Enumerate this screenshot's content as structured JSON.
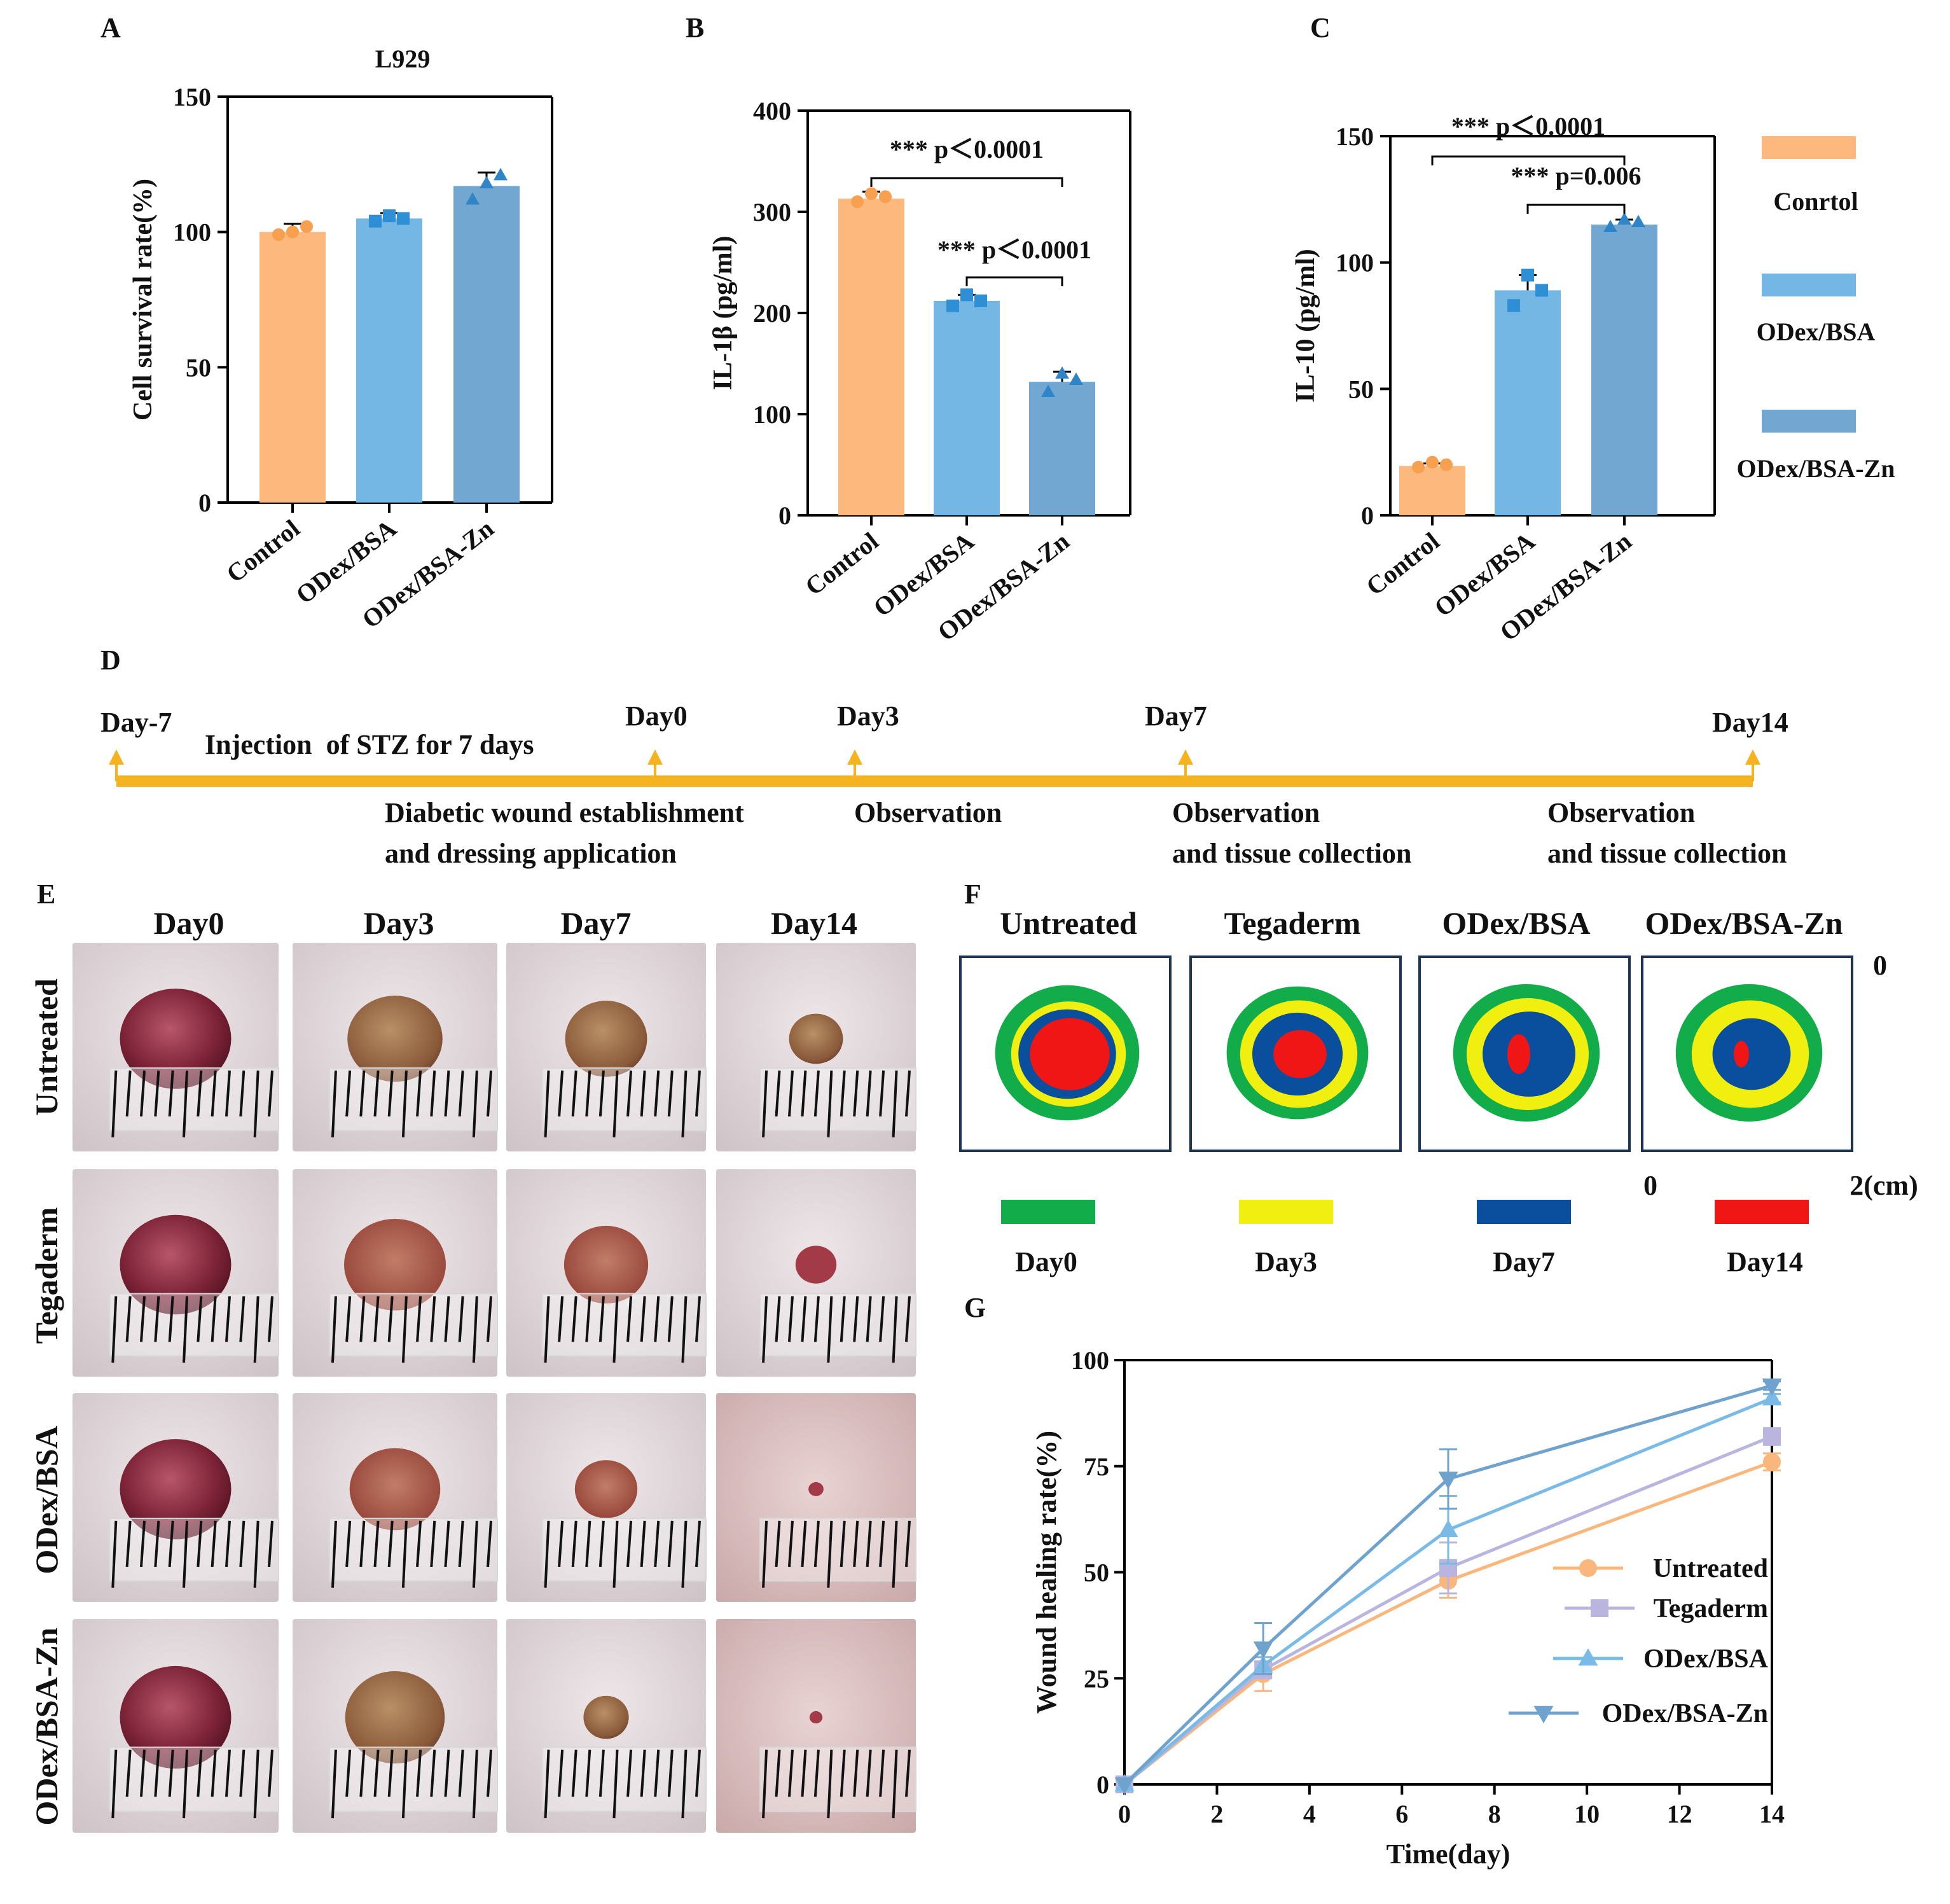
{
  "colors": {
    "control": "#FDB97D",
    "bsa": "#75B7E4",
    "bsazn": "#72A7D1",
    "control_dot": "#F7A04F",
    "bsa_dot": "#2E8FD5",
    "bsazn_dot": "#2F85C8",
    "timeline": "#F5B31F",
    "day0": "#12AD4A",
    "day3": "#F1EF10",
    "day7": "#094F9D",
    "day14": "#F11616",
    "untreated_line": "#F9B67D",
    "tegaderm_line": "#B9B5DF",
    "bsa_line": "#7ABAE6",
    "bsazn_line": "#6FA2CD"
  },
  "panel_letters": {
    "a": "A",
    "b": "B",
    "c": "C",
    "d": "D",
    "e": "E",
    "f": "F",
    "g": "G"
  },
  "chart_data": [
    {
      "id": "A",
      "type": "bar",
      "title": "L929",
      "xlabel": "",
      "ylabel": "Cell survival rate(%)",
      "ylim": [
        0,
        150
      ],
      "yticks": [
        0,
        50,
        100,
        150
      ],
      "categories": [
        "Control",
        "ODex/BSA",
        "ODex/BSA-Zn"
      ],
      "values": [
        100,
        105,
        117
      ],
      "errors": [
        3,
        2,
        5
      ],
      "points": [
        [
          99,
          100,
          102
        ],
        [
          104,
          106,
          105
        ],
        [
          112,
          118,
          121
        ]
      ],
      "annotations": []
    },
    {
      "id": "B",
      "type": "bar",
      "title": "",
      "xlabel": "",
      "ylabel": "IL-1β (pg/ml)",
      "ylim": [
        0,
        400
      ],
      "yticks": [
        0,
        100,
        200,
        300,
        400
      ],
      "categories": [
        "Control",
        "ODex/BSA",
        "ODex/BSA-Zn"
      ],
      "values": [
        313,
        212,
        132
      ],
      "errors": [
        7,
        6,
        10
      ],
      "points": [
        [
          310,
          318,
          315
        ],
        [
          207,
          218,
          212
        ],
        [
          122,
          140,
          134
        ]
      ],
      "annotations": [
        {
          "text": "*** p＜0.0001",
          "from": 0,
          "to": 2
        },
        {
          "text": "*** p＜0.0001",
          "from": 1,
          "to": 2
        }
      ]
    },
    {
      "id": "C",
      "type": "bar",
      "title": "",
      "xlabel": "",
      "ylabel": "IL-10 (pg/ml)",
      "ylim": [
        0,
        150
      ],
      "yticks": [
        0,
        50,
        100,
        150
      ],
      "categories": [
        "Control",
        "ODex/BSA",
        "ODex/BSA-Zn"
      ],
      "values": [
        19.5,
        89,
        115
      ],
      "errors": [
        1,
        6,
        2
      ],
      "points": [
        [
          19,
          21,
          20
        ],
        [
          83,
          95,
          89
        ],
        [
          114,
          117,
          116
        ]
      ],
      "annotations": [
        {
          "text": "*** p＜0.0001",
          "from": 0,
          "to": 2
        },
        {
          "text": "*** p=0.006",
          "from": 1,
          "to": 2
        }
      ]
    },
    {
      "id": "G",
      "type": "line",
      "title": "",
      "xlabel": "Time(day)",
      "ylabel": "Wound healing rate(%)",
      "xlim": [
        0,
        14
      ],
      "ylim": [
        0,
        100
      ],
      "xticks": [
        0,
        2,
        4,
        6,
        8,
        10,
        12,
        14
      ],
      "yticks": [
        0,
        25,
        50,
        75,
        100
      ],
      "x": [
        0,
        3,
        7,
        14
      ],
      "series": [
        {
          "name": "Untreated",
          "values": [
            0,
            26,
            48,
            76
          ],
          "errors": [
            0,
            4,
            4,
            2
          ],
          "marker": "circle"
        },
        {
          "name": "Tegaderm",
          "values": [
            0,
            27,
            51,
            82
          ],
          "errors": [
            0,
            2,
            6,
            2
          ],
          "marker": "square"
        },
        {
          "name": "ODex/BSA",
          "values": [
            0,
            28,
            60,
            91
          ],
          "errors": [
            0,
            2,
            8,
            1
          ],
          "marker": "triangle-up"
        },
        {
          "name": "ODex/BSA-Zn",
          "values": [
            0,
            32,
            72,
            94
          ],
          "errors": [
            0,
            6,
            7,
            1
          ],
          "marker": "triangle-down"
        }
      ]
    }
  ],
  "bar_legend": [
    "Conrtol",
    "ODex/BSA",
    "ODex/BSA-Zn"
  ],
  "timeline": {
    "top_labels": [
      "Day-7",
      "Day0",
      "Day3",
      "Day7",
      "Day14"
    ],
    "top_note": "Injection  of STZ for 7 days",
    "bottom": [
      {
        "line1": "Diabetic wound establishment",
        "line2": "and dressing application"
      },
      {
        "line1": "Observation",
        "line2": ""
      },
      {
        "line1": "Observation",
        "line2": "and tissue collection"
      },
      {
        "line1": "Observation",
        "line2": "and tissue collection"
      }
    ]
  },
  "photos": {
    "columns": [
      "Day0",
      "Day3",
      "Day7",
      "Day14"
    ],
    "rows": [
      "Untreated",
      "Tegaderm",
      "ODex/BSA",
      "ODex/BSA-Zn"
    ]
  },
  "traces": {
    "columns": [
      "Untreated",
      "Tegaderm",
      "ODex/BSA",
      "ODex/BSA-Zn"
    ],
    "scale": {
      "start": "0",
      "end": "2(cm)"
    },
    "legend": [
      "Day0",
      "Day3",
      "Day7",
      "Day14"
    ]
  }
}
